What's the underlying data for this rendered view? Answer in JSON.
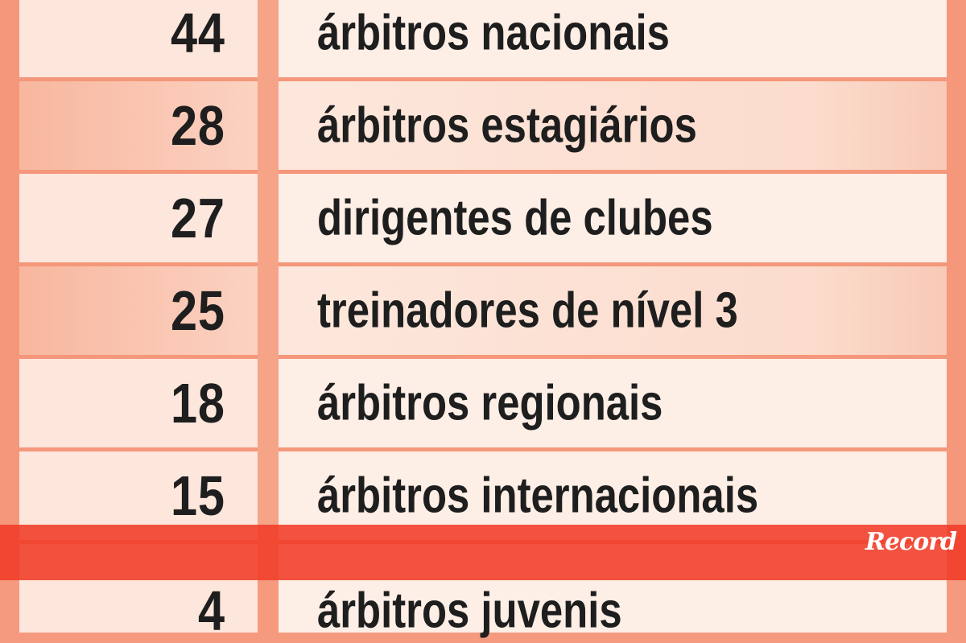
{
  "rows": [
    {
      "count": "44",
      "label": "árbitros nacionais"
    },
    {
      "count": "28",
      "label": "árbitros estagiários"
    },
    {
      "count": "27",
      "label": "dirigentes de clubes"
    },
    {
      "count": "25",
      "label": "treinadores de nível 3"
    },
    {
      "count": "18",
      "label": "árbitros regionais"
    },
    {
      "count": "15",
      "label": "árbitros internacionais"
    },
    {
      "count": "4",
      "label": "árbitros juvenis"
    }
  ],
  "logo": "Record",
  "colors": {
    "border": "#f4977a",
    "banner": "#f03c28",
    "cell": "#fde6dc"
  }
}
